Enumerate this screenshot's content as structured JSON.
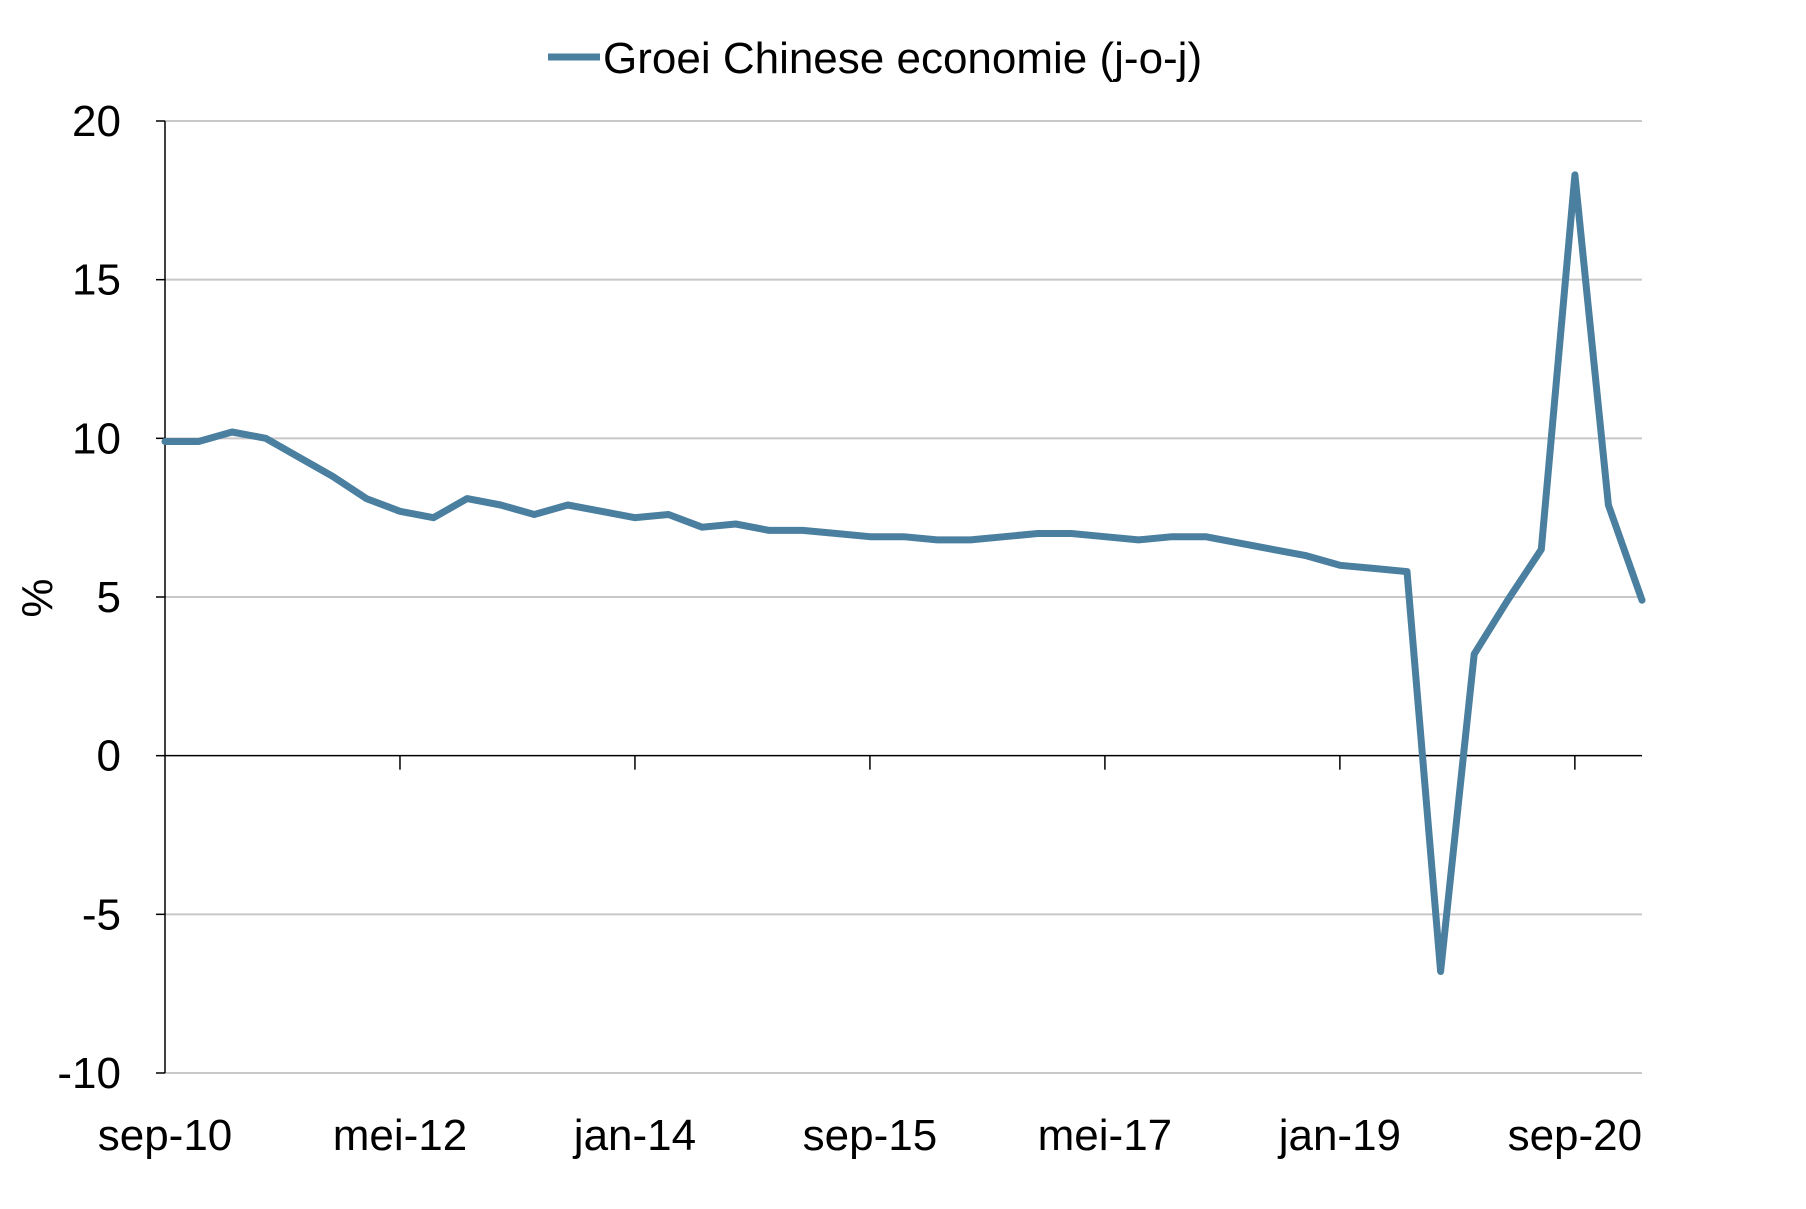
{
  "chart_data": {
    "type": "line",
    "title": "",
    "xlabel": "",
    "ylabel": "%",
    "ylim": [
      -10,
      20
    ],
    "yticks": [
      -10,
      -5,
      0,
      5,
      10,
      15,
      20
    ],
    "x_tick_labels": [
      "sep-10",
      "mei-12",
      "jan-14",
      "sep-15",
      "mei-17",
      "jan-19",
      "sep-20"
    ],
    "grid": "horizontal",
    "legend_position": "top-center",
    "colors": {
      "series": "#4A7FA0",
      "grid": "#C8C8C8",
      "axis": "#000000"
    },
    "series": [
      {
        "name": "Groei Chinese economie (j-o-j)",
        "x": [
          "sep-10",
          "dec-10",
          "mrt-11",
          "jun-11",
          "sep-11",
          "dec-11",
          "mrt-12",
          "jun-12",
          "sep-12",
          "dec-12",
          "mrt-13",
          "jun-13",
          "sep-13",
          "dec-13",
          "mrt-14",
          "jun-14",
          "sep-14",
          "dec-14",
          "mrt-15",
          "jun-15",
          "sep-15",
          "dec-15",
          "mrt-16",
          "jun-16",
          "sep-16",
          "dec-16",
          "mrt-17",
          "jun-17",
          "sep-17",
          "dec-17",
          "mrt-18",
          "jun-18",
          "sep-18",
          "dec-18",
          "mrt-19",
          "jun-19",
          "sep-19",
          "dec-19",
          "mrt-20",
          "jun-20",
          "sep-20",
          "dec-20",
          "mrt-21",
          "jun-21",
          "sep-21"
        ],
        "values": [
          9.9,
          9.9,
          10.2,
          10.0,
          9.4,
          8.8,
          8.1,
          7.7,
          7.5,
          8.1,
          7.9,
          7.6,
          7.9,
          7.7,
          7.5,
          7.6,
          7.2,
          7.3,
          7.1,
          7.1,
          7.0,
          6.9,
          6.9,
          6.8,
          6.8,
          6.9,
          7.0,
          7.0,
          6.9,
          6.8,
          6.9,
          6.9,
          6.7,
          6.5,
          6.3,
          6.0,
          5.9,
          5.8,
          -6.8,
          3.2,
          4.9,
          6.5,
          18.3,
          7.9,
          4.9
        ]
      }
    ]
  }
}
